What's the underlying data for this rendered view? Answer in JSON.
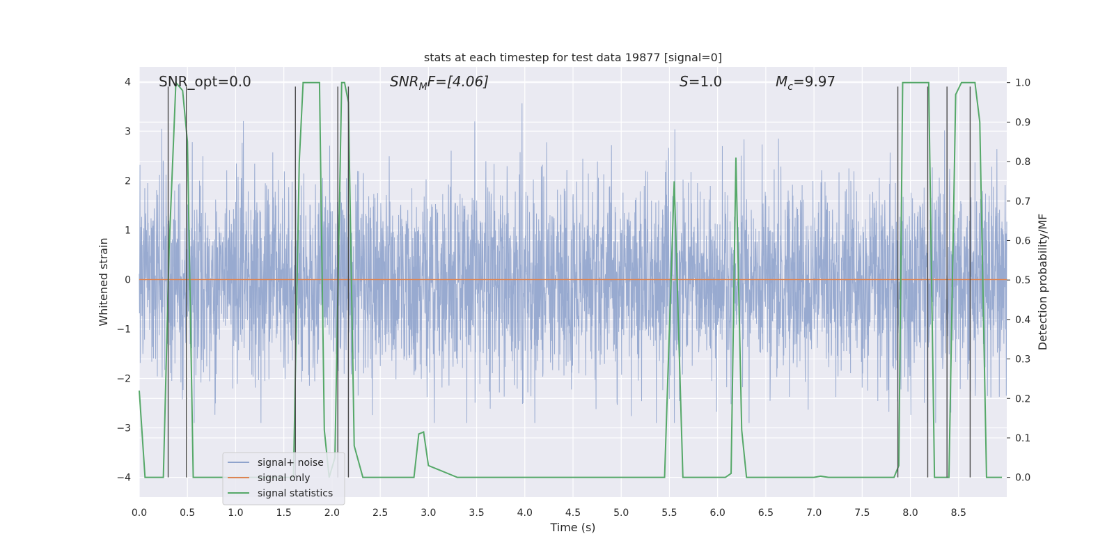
{
  "chart_data": {
    "type": "line",
    "title": "stats at each timestep for test data 19877 [signal=0]",
    "xlabel": "Time (s)",
    "ylabel_left": "Whitened strain",
    "ylabel_right": "Detection probability/MF",
    "xlim": [
      0.0,
      9.0
    ],
    "ylim_left": [
      -4.4,
      4.3
    ],
    "ylim_right": [
      -0.05,
      1.04
    ],
    "x_ticks": [
      "0.0",
      "0.5",
      "1.0",
      "1.5",
      "2.0",
      "2.5",
      "3.0",
      "3.5",
      "4.0",
      "4.5",
      "5.0",
      "5.5",
      "6.0",
      "6.5",
      "7.0",
      "7.5",
      "8.0",
      "8.5"
    ],
    "y_ticks_left": [
      "4",
      "3",
      "2",
      "1",
      "0",
      "−1",
      "−2",
      "−3",
      "−4"
    ],
    "y_ticks_right": [
      "1.0",
      "0.9",
      "0.8",
      "0.7",
      "0.6",
      "0.5",
      "0.4",
      "0.3",
      "0.2",
      "0.1",
      "0.0"
    ],
    "grid": true,
    "legend_position": "lower-left",
    "annotations": {
      "snr_opt": "SNR_opt=0.0",
      "snr_mf_main": "SNR",
      "snr_mf_sub": "M",
      "snr_mf_tail": "F=[4.06]",
      "s_main": "S",
      "s_tail": "=1.0",
      "mc_main": "M",
      "mc_sub": "c",
      "mc_tail": "=9.97"
    },
    "series": [
      {
        "name": "signal+ noise",
        "color": "#8fa3cc",
        "noise_std": 1.0,
        "envelope_min": -2.9,
        "envelope_max": 3.9
      },
      {
        "name": "signal only",
        "color": "#dd8452",
        "value": 0.0
      },
      {
        "name": "signal statistics",
        "color": "#55a868",
        "x": [
          0.0,
          0.06,
          0.25,
          0.31,
          0.38,
          0.45,
          0.5,
          0.56,
          1.6,
          1.66,
          1.7,
          1.87,
          1.92,
          1.97,
          2.03,
          2.1,
          2.13,
          2.17,
          2.23,
          2.32,
          2.8,
          2.85,
          2.9,
          2.95,
          3.0,
          3.1,
          3.3,
          3.5,
          5.45,
          5.55,
          5.64,
          5.95,
          6.08,
          6.14,
          6.19,
          6.25,
          6.3,
          6.5,
          7.0,
          7.07,
          7.15,
          7.55,
          7.83,
          7.88,
          7.92,
          8.0,
          8.19,
          8.25,
          8.4,
          8.47,
          8.53,
          8.6,
          8.67,
          8.72,
          8.79,
          8.82,
          8.86,
          8.95
        ],
        "y": [
          0.22,
          0.0,
          0.0,
          0.58,
          1.0,
          0.98,
          0.85,
          0.0,
          0.0,
          0.8,
          1.0,
          1.0,
          0.12,
          0.0,
          0.05,
          1.0,
          1.0,
          0.95,
          0.08,
          0.0,
          0.0,
          0.0,
          0.11,
          0.115,
          0.03,
          0.02,
          0.0,
          0.0,
          0.0,
          0.75,
          0.0,
          0.0,
          0.0,
          0.01,
          0.81,
          0.12,
          0.0,
          0.0,
          0.0,
          0.003,
          0.0,
          0.0,
          0.0,
          0.03,
          1.0,
          1.0,
          1.0,
          0.0,
          0.0,
          0.97,
          1.0,
          1.0,
          1.0,
          0.9,
          0.0,
          0.0,
          0.0,
          0.0
        ]
      }
    ],
    "vertical_markers_x": [
      0.3,
      0.49,
      1.62,
      2.06,
      2.17,
      7.87,
      8.18,
      8.38,
      8.62
    ],
    "marker_color": "#4a4a4a"
  }
}
